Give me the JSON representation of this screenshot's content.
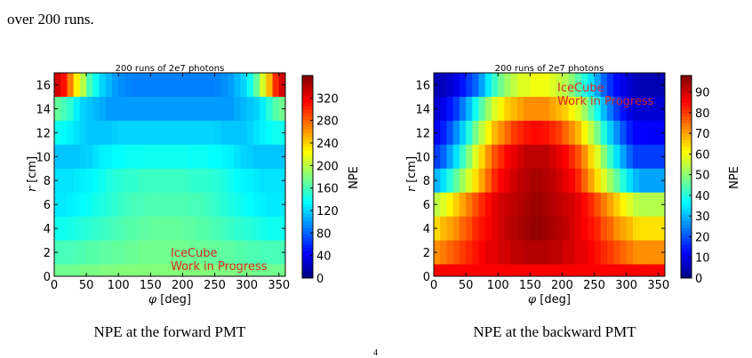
{
  "page": {
    "top_text": "over 200 runs.",
    "page_number": "4"
  },
  "colors": {
    "annotation": "#d62728"
  },
  "chart_data": [
    {
      "type": "heatmap",
      "title": "200 runs of 2e7 photons",
      "xlabel": "φ [deg]",
      "ylabel": "r [cm]",
      "colorbar_label": "NPE",
      "caption": "NPE at the forward PMT",
      "annotation": [
        "IceCube",
        "Work in Progress"
      ],
      "annotation_position": "bottom-right",
      "colormap": "jet",
      "xlim": [
        0,
        360
      ],
      "ylim": [
        0,
        17
      ],
      "xticks": [
        0,
        50,
        100,
        150,
        200,
        250,
        300,
        350
      ],
      "yticks": [
        0,
        2,
        4,
        6,
        8,
        10,
        12,
        14,
        16
      ],
      "zlim": [
        0,
        360
      ],
      "cbar_ticks": [
        0,
        40,
        80,
        120,
        160,
        200,
        240,
        280,
        320
      ],
      "nx": 36,
      "r_bins": [
        0,
        1,
        3,
        5,
        7,
        9,
        11,
        13,
        15,
        17
      ],
      "rows_top_to_bottom": [
        [
          330,
          310,
          270,
          230,
          200,
          160,
          140,
          120,
          110,
          100,
          95,
          92,
          90,
          90,
          90,
          90,
          90,
          90,
          90,
          90,
          90,
          90,
          90,
          90,
          90,
          92,
          95,
          100,
          110,
          120,
          140,
          170,
          210,
          250,
          300,
          330
        ],
        [
          170,
          160,
          150,
          130,
          120,
          115,
          110,
          105,
          100,
          100,
          100,
          100,
          100,
          100,
          100,
          100,
          100,
          100,
          100,
          100,
          100,
          100,
          100,
          100,
          100,
          100,
          100,
          100,
          105,
          110,
          115,
          120,
          130,
          150,
          165,
          175
        ],
        [
          140,
          135,
          130,
          125,
          120,
          115,
          115,
          115,
          115,
          118,
          120,
          120,
          120,
          120,
          120,
          120,
          120,
          120,
          120,
          120,
          120,
          120,
          120,
          120,
          120,
          118,
          115,
          115,
          115,
          115,
          120,
          125,
          130,
          135,
          140,
          140
        ],
        [
          115,
          115,
          115,
          115,
          118,
          120,
          125,
          130,
          132,
          135,
          135,
          138,
          138,
          138,
          140,
          140,
          140,
          140,
          140,
          140,
          140,
          138,
          138,
          138,
          135,
          135,
          132,
          130,
          125,
          120,
          118,
          115,
          115,
          115,
          115,
          115
        ],
        [
          125,
          125,
          125,
          128,
          130,
          132,
          135,
          140,
          145,
          148,
          150,
          152,
          152,
          155,
          155,
          155,
          155,
          155,
          155,
          155,
          155,
          152,
          152,
          152,
          150,
          148,
          145,
          140,
          135,
          132,
          130,
          128,
          125,
          125,
          125,
          125
        ],
        [
          128,
          128,
          130,
          132,
          135,
          138,
          142,
          145,
          148,
          152,
          155,
          158,
          160,
          160,
          162,
          162,
          162,
          162,
          162,
          162,
          162,
          160,
          160,
          158,
          155,
          152,
          148,
          145,
          142,
          138,
          135,
          132,
          130,
          128,
          128,
          128
        ],
        [
          140,
          140,
          142,
          145,
          148,
          150,
          152,
          155,
          158,
          160,
          162,
          165,
          165,
          168,
          168,
          170,
          170,
          170,
          170,
          170,
          168,
          168,
          165,
          165,
          162,
          160,
          158,
          155,
          152,
          150,
          148,
          145,
          142,
          140,
          140,
          140
        ],
        [
          160,
          160,
          160,
          162,
          162,
          165,
          165,
          168,
          168,
          170,
          170,
          172,
          172,
          175,
          175,
          175,
          175,
          175,
          175,
          175,
          175,
          172,
          172,
          172,
          170,
          170,
          168,
          168,
          165,
          165,
          162,
          162,
          160,
          160,
          160,
          160
        ],
        [
          175,
          175,
          175,
          175,
          178,
          178,
          178,
          180,
          180,
          180,
          182,
          182,
          182,
          182,
          182,
          182,
          182,
          182,
          182,
          182,
          182,
          182,
          182,
          182,
          182,
          180,
          180,
          180,
          178,
          178,
          178,
          175,
          175,
          175,
          175,
          175
        ]
      ]
    },
    {
      "type": "heatmap",
      "title": "200 runs of 2e7 photons",
      "xlabel": "φ [deg]",
      "ylabel": "r [cm]",
      "colorbar_label": "NPE",
      "caption": "NPE at the backward PMT",
      "annotation": [
        "IceCube",
        "Work in Progress"
      ],
      "annotation_position": "top-right",
      "colormap": "jet",
      "xlim": [
        0,
        360
      ],
      "ylim": [
        0,
        17
      ],
      "xticks": [
        0,
        50,
        100,
        150,
        200,
        250,
        300,
        350
      ],
      "yticks": [
        0,
        2,
        4,
        6,
        8,
        10,
        12,
        14,
        16
      ],
      "zlim": [
        0,
        98
      ],
      "cbar_ticks": [
        0,
        10,
        20,
        30,
        40,
        50,
        60,
        70,
        80,
        90
      ],
      "nx": 36,
      "r_bins": [
        0,
        1,
        3,
        5,
        7,
        9,
        11,
        13,
        15,
        17
      ],
      "rows_top_to_bottom": [
        [
          5,
          6,
          8,
          10,
          14,
          18,
          22,
          28,
          35,
          42,
          48,
          52,
          55,
          58,
          58,
          60,
          60,
          60,
          58,
          56,
          54,
          50,
          45,
          40,
          34,
          28,
          22,
          17,
          13,
          10,
          8,
          6,
          5,
          5,
          5,
          5
        ],
        [
          8,
          10,
          14,
          18,
          24,
          30,
          38,
          45,
          52,
          58,
          62,
          66,
          68,
          70,
          72,
          72,
          72,
          72,
          70,
          68,
          66,
          62,
          58,
          52,
          45,
          38,
          30,
          24,
          18,
          14,
          10,
          8,
          8,
          8,
          8,
          8
        ],
        [
          12,
          15,
          20,
          26,
          32,
          40,
          48,
          55,
          62,
          68,
          72,
          76,
          80,
          82,
          84,
          85,
          85,
          84,
          82,
          80,
          76,
          72,
          68,
          62,
          55,
          48,
          40,
          32,
          26,
          20,
          15,
          12,
          12,
          12,
          12,
          12
        ],
        [
          18,
          22,
          28,
          34,
          42,
          50,
          58,
          65,
          72,
          78,
          82,
          86,
          88,
          90,
          92,
          92,
          92,
          92,
          90,
          88,
          86,
          82,
          78,
          72,
          65,
          58,
          50,
          42,
          34,
          28,
          22,
          18,
          18,
          18,
          18,
          18
        ],
        [
          30,
          34,
          40,
          46,
          52,
          58,
          64,
          70,
          76,
          82,
          86,
          88,
          90,
          92,
          93,
          94,
          94,
          93,
          92,
          90,
          88,
          86,
          82,
          76,
          70,
          64,
          58,
          52,
          46,
          40,
          34,
          30,
          28,
          28,
          28,
          28
        ],
        [
          55,
          58,
          62,
          66,
          70,
          74,
          78,
          82,
          85,
          88,
          90,
          91,
          92,
          93,
          94,
          95,
          95,
          94,
          93,
          92,
          91,
          90,
          88,
          85,
          82,
          78,
          74,
          70,
          66,
          62,
          58,
          55,
          54,
          54,
          54,
          54
        ],
        [
          65,
          68,
          70,
          72,
          76,
          78,
          82,
          84,
          86,
          88,
          90,
          92,
          93,
          94,
          95,
          96,
          96,
          95,
          94,
          93,
          92,
          90,
          88,
          86,
          84,
          82,
          78,
          76,
          72,
          70,
          68,
          65,
          64,
          64,
          64,
          64
        ],
        [
          72,
          74,
          76,
          78,
          80,
          82,
          84,
          86,
          88,
          88,
          90,
          90,
          92,
          92,
          93,
          93,
          93,
          93,
          92,
          92,
          90,
          90,
          88,
          88,
          86,
          84,
          82,
          80,
          78,
          76,
          74,
          72,
          72,
          72,
          72,
          72
        ],
        [
          86,
          86,
          86,
          86,
          86,
          86,
          86,
          86,
          86,
          86,
          86,
          86,
          86,
          86,
          86,
          86,
          86,
          86,
          86,
          86,
          86,
          86,
          86,
          86,
          86,
          86,
          86,
          86,
          86,
          86,
          86,
          86,
          86,
          86,
          86,
          86
        ]
      ]
    }
  ]
}
